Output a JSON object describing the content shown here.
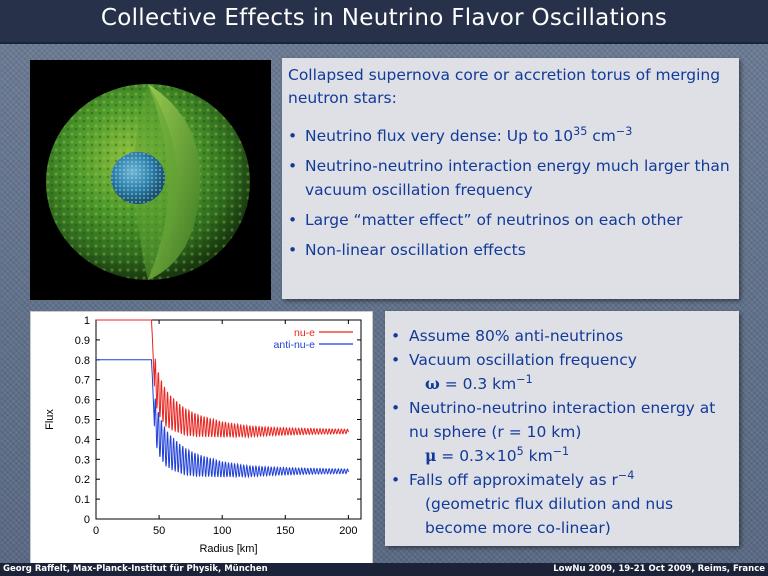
{
  "slide": {
    "title": "Collective Effects in Neutrino Flavor Oscillations"
  },
  "panel_top": {
    "intro": "Collapsed supernova core or accretion torus of merging neutron stars:",
    "bullets": [
      {
        "text": "Neutrino flux very dense: Up to 10",
        "sup": "35",
        "tail": " cm",
        "tail_sup": "−3"
      },
      {
        "text": "Neutrino-neutrino interaction energy much larger than vacuum oscillation frequency"
      },
      {
        "text": "Large “matter effect” of neutrinos on each other"
      },
      {
        "text": "Non-linear oscillation effects"
      }
    ]
  },
  "panel_bottom": {
    "b1": "Assume 80% anti-neutrinos",
    "b2": "Vacuum oscillation frequency",
    "b2_symbol": "ω",
    "b2_value": " = 0.3 km",
    "b2_exp": "−1",
    "b3": "Neutrino-neutrino interaction energy at nu sphere (r = 10 km)",
    "b3_symbol": "μ",
    "b3_value": " = 0.3×10",
    "b3_exp1": "5",
    "b3_unit": " km",
    "b3_exp2": "−1",
    "b4": "Falls off approximately as r",
    "b4_exp": "−4",
    "b4_paren": "(geometric flux dilution and nus become more co-linear)"
  },
  "footer": {
    "left": "Georg Raffelt, Max-Planck-Institut für Physik, München",
    "right": "LowNu 2009, 19-21 Oct 2009, Reims, France"
  },
  "chart_data": {
    "type": "line",
    "xlabel": "Radius [km]",
    "ylabel": "Flux",
    "xlim": [
      0,
      210
    ],
    "ylim": [
      0,
      1
    ],
    "xticks": [
      "0",
      "50",
      "100",
      "150",
      "200"
    ],
    "yticks": [
      "0",
      "0.1",
      "0.2",
      "0.3",
      "0.4",
      "0.5",
      "0.6",
      "0.7",
      "0.8",
      "0.9",
      "1"
    ],
    "legend_position": "top-right",
    "series": [
      {
        "name": "nu-e",
        "color": "#e8241f",
        "x": [
          0,
          44,
          46,
          50,
          55,
          60,
          70,
          80,
          100,
          120,
          150,
          180,
          200
        ],
        "y": [
          1.0,
          1.0,
          0.72,
          0.62,
          0.56,
          0.53,
          0.49,
          0.47,
          0.45,
          0.44,
          0.44,
          0.44,
          0.44
        ]
      },
      {
        "name": "anti-nu-e",
        "color": "#1f3fd8",
        "x": [
          0,
          44,
          46,
          50,
          55,
          60,
          70,
          80,
          100,
          120,
          150,
          180,
          200
        ],
        "y": [
          0.8,
          0.8,
          0.52,
          0.42,
          0.36,
          0.33,
          0.29,
          0.27,
          0.25,
          0.24,
          0.24,
          0.24,
          0.24
        ]
      }
    ]
  }
}
